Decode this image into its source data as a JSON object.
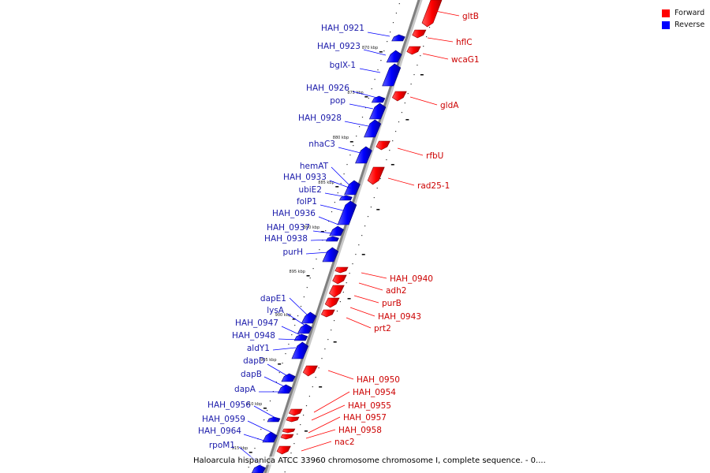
{
  "legend": {
    "items": [
      {
        "label": "Forward",
        "color": "#ff0000"
      },
      {
        "label": "Reverse",
        "color": "#0000ff"
      }
    ]
  },
  "caption": "Haloarcula hispanica ATCC 33960 chromosome chromosome I, complete sequence. - 0....",
  "scale_labels": [
    "870 kbp",
    "875 kbp",
    "880 kbp",
    "885 kbp",
    "890 kbp",
    "895 kbp",
    "900 kbp",
    "905 kbp",
    "910 kbp",
    "915 kbp"
  ],
  "forward_genes": [
    "gltB",
    "hflC",
    "wcaG1",
    "gldA",
    "rfbU",
    "rad25-1",
    "HAH_0940",
    "adh2",
    "purB",
    "HAH_0943",
    "prt2",
    "HAH_0950",
    "HAH_0954",
    "HAH_0955",
    "HAH_0957",
    "HAH_0958",
    "nac2"
  ],
  "reverse_genes": [
    "HAH_0921",
    "HAH_0923",
    "bglX-1",
    "HAH_0926",
    "pop",
    "HAH_0928",
    "nhaC3",
    "hemAT",
    "HAH_0933",
    "ubiE2",
    "folP1",
    "HAH_0936",
    "HAH_0937",
    "HAH_0938",
    "purH",
    "dapE1",
    "lysA",
    "HAH_0947",
    "HAH_0948",
    "aldY1",
    "dapD",
    "dapB",
    "dapA",
    "HAH_0956",
    "HAH_0959",
    "HAH_0964",
    "rpoM1"
  ],
  "colors": {
    "forward": "#ff0000",
    "reverse": "#0000ff",
    "forward_text": "#cc0000",
    "reverse_text": "#1a1aaa",
    "backbone": "#808080"
  }
}
